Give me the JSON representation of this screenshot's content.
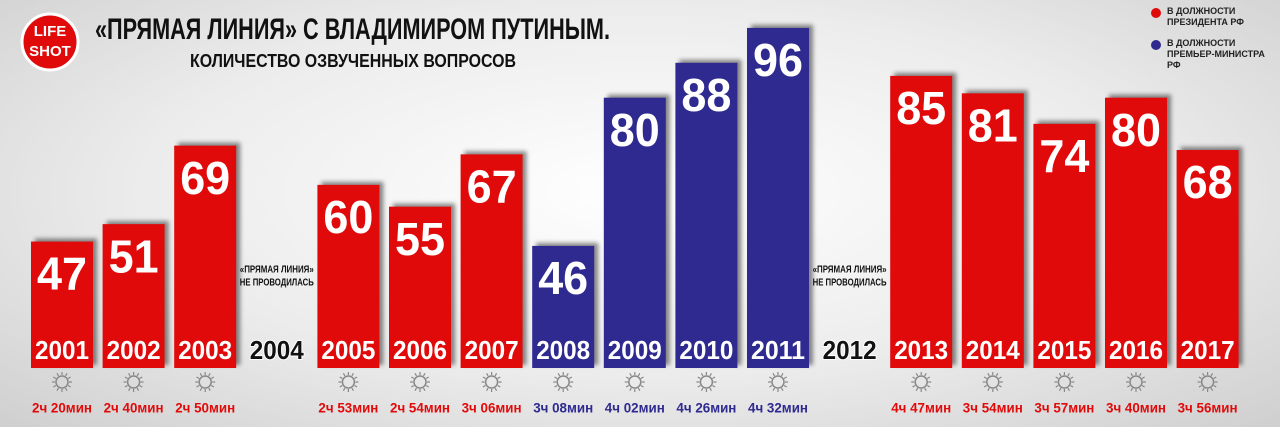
{
  "chart_data": {
    "type": "bar",
    "title": "«ПРЯМАЯ ЛИНИЯ» С ВЛАДИМИРОМ ПУТИНЫМ.",
    "subtitle": "КОЛИЧЕСТВО ОЗВУЧЕННЫХ ВОПРОСОВ",
    "logo": [
      "LIFE",
      "SHOT"
    ],
    "categories": [
      "2001",
      "2002",
      "2003",
      "2004",
      "2005",
      "2006",
      "2007",
      "2008",
      "2009",
      "2010",
      "2011",
      "2012",
      "2013",
      "2014",
      "2015",
      "2016",
      "2017"
    ],
    "series": [
      {
        "name": "В ДОЛЖНОСТИ ПРЕЗИДЕНТА РФ",
        "color": "#e10a0a",
        "values": [
          47,
          51,
          69,
          null,
          60,
          55,
          67,
          null,
          null,
          null,
          null,
          null,
          85,
          81,
          74,
          80,
          68
        ]
      },
      {
        "name": "В ДОЛЖНОСТИ ПРЕМЬЕР-МИНИСТРА РФ",
        "color": "#2e2a8f",
        "values": [
          null,
          null,
          null,
          null,
          null,
          null,
          null,
          46,
          80,
          88,
          96,
          null,
          null,
          null,
          null,
          null,
          null
        ]
      }
    ],
    "durations": [
      "2ч 20мин",
      "2ч 40мин",
      "2ч 50мин",
      null,
      "2ч 53мин",
      "2ч 54мин",
      "3ч 06мин",
      "3ч 08мин",
      "4ч 02мин",
      "4ч 26мин",
      "4ч 32мин",
      null,
      "4ч 47мин",
      "3ч 54мин",
      "3ч 57мин",
      "3ч 40мин",
      "3ч 56мин"
    ],
    "annotations": [
      {
        "x": "2004",
        "lines": [
          "«ПРЯМАЯ ЛИНИЯ»",
          "НЕ ПРОВОДИЛАСЬ"
        ]
      },
      {
        "x": "2012",
        "lines": [
          "«ПРЯМАЯ ЛИНИЯ»",
          "НЕ ПРОВОДИЛАСЬ"
        ]
      }
    ],
    "legend": "top-right"
  }
}
